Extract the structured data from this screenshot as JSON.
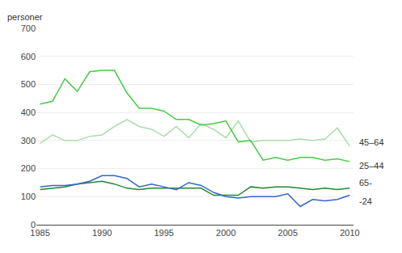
{
  "chart_data": {
    "type": "line",
    "x": [
      1985,
      1986,
      1987,
      1988,
      1989,
      1990,
      1991,
      1992,
      1993,
      1994,
      1995,
      1996,
      1997,
      1998,
      1999,
      2000,
      2001,
      2002,
      2003,
      2004,
      2005,
      2006,
      2007,
      2008,
      2009,
      2010
    ],
    "series": [
      {
        "name": "45–64",
        "color": "#aaddaa",
        "values": [
          290,
          320,
          300,
          300,
          315,
          320,
          350,
          375,
          350,
          340,
          315,
          350,
          310,
          360,
          340,
          310,
          370,
          295,
          300,
          300,
          300,
          305,
          300,
          305,
          345,
          280
        ]
      },
      {
        "name": "25–44",
        "color": "#44cc44",
        "values": [
          430,
          440,
          520,
          475,
          545,
          550,
          550,
          470,
          415,
          415,
          405,
          375,
          375,
          355,
          360,
          370,
          295,
          300,
          230,
          240,
          230,
          240,
          240,
          230,
          235,
          225
        ]
      },
      {
        "name": "65-",
        "color": "#228833",
        "values": [
          125,
          130,
          135,
          145,
          150,
          155,
          145,
          130,
          125,
          130,
          130,
          130,
          130,
          130,
          105,
          105,
          105,
          135,
          130,
          135,
          135,
          130,
          125,
          130,
          125,
          130
        ]
      },
      {
        "name": "-24",
        "color": "#3366cc",
        "values": [
          135,
          140,
          140,
          145,
          155,
          175,
          175,
          165,
          135,
          145,
          135,
          125,
          150,
          140,
          115,
          100,
          95,
          100,
          100,
          100,
          110,
          65,
          90,
          85,
          90,
          105
        ]
      }
    ],
    "ylabel": "personer",
    "xlim": [
      1984.7,
      2010.3
    ],
    "xticks": [
      1985,
      1990,
      1995,
      2000,
      2005,
      2010
    ],
    "ylim": [
      0,
      700
    ],
    "yticks": [
      0,
      100,
      200,
      300,
      400,
      500,
      600,
      700
    ],
    "grid": true
  }
}
